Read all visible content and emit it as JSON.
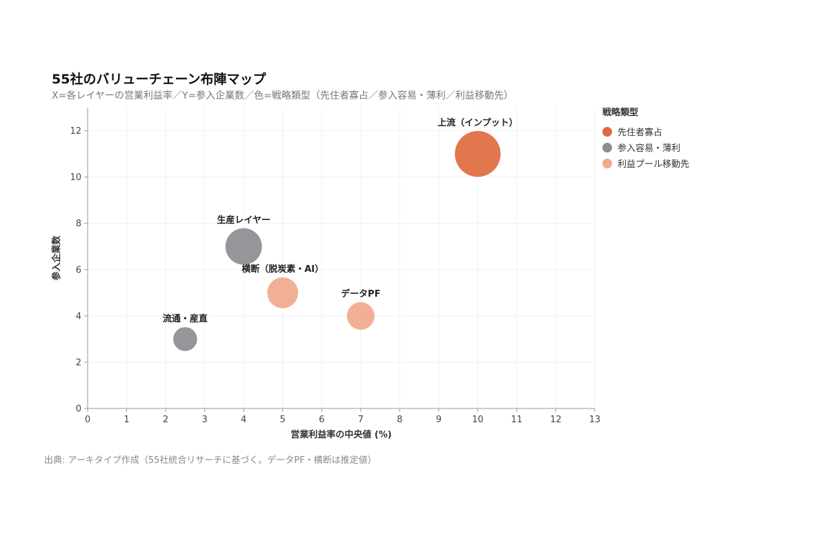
{
  "chart_data": {
    "type": "scatter",
    "title": "55社のバリューチェーン布陣マップ",
    "subtitle": "X=各レイヤーの営業利益率／Y=参入企業数／色=戦略類型（先住者寡占／参入容易・薄利／利益移動先）",
    "xlabel": "営業利益率の中央値 (%)",
    "ylabel": "参入企業数",
    "xlim": [
      0,
      13
    ],
    "ylim": [
      0,
      13
    ],
    "xticks": [
      "0",
      "1",
      "2",
      "3",
      "4",
      "5",
      "6",
      "7",
      "8",
      "9",
      "10",
      "11",
      "12",
      "13"
    ],
    "yticks": [
      "0",
      "2",
      "4",
      "6",
      "8",
      "10",
      "12"
    ],
    "grid": true,
    "legend": {
      "title": "戦略類型",
      "position": "top-right",
      "items": [
        {
          "label": "先住者寡占",
          "color": "#e06a3e"
        },
        {
          "label": "参入容易・薄利",
          "color": "#8e8c91"
        },
        {
          "label": "利益プール移動先",
          "color": "#f0a98c"
        }
      ]
    },
    "points": [
      {
        "label": "上流（インプット）",
        "x": 10,
        "y": 11,
        "size": 11,
        "group": "先住者寡占",
        "color": "#e06a3e"
      },
      {
        "label": "生産レイヤー",
        "x": 4,
        "y": 7,
        "size": 7,
        "group": "参入容易・薄利",
        "color": "#8e8c91"
      },
      {
        "label": "横断（脱炭素・AI）",
        "x": 5,
        "y": 5,
        "size": 5,
        "group": "利益プール移動先",
        "color": "#f0a98c"
      },
      {
        "label": "データPF",
        "x": 7,
        "y": 4,
        "size": 4,
        "group": "利益プール移動先",
        "color": "#f0a98c"
      },
      {
        "label": "流通・産直",
        "x": 2.5,
        "y": 3,
        "size": 3,
        "group": "参入容易・薄利",
        "color": "#8e8c91"
      }
    ]
  },
  "source": "出典: アーキタイプ作成（55社統合リサーチに基づく。データPF・横断は推定値）"
}
